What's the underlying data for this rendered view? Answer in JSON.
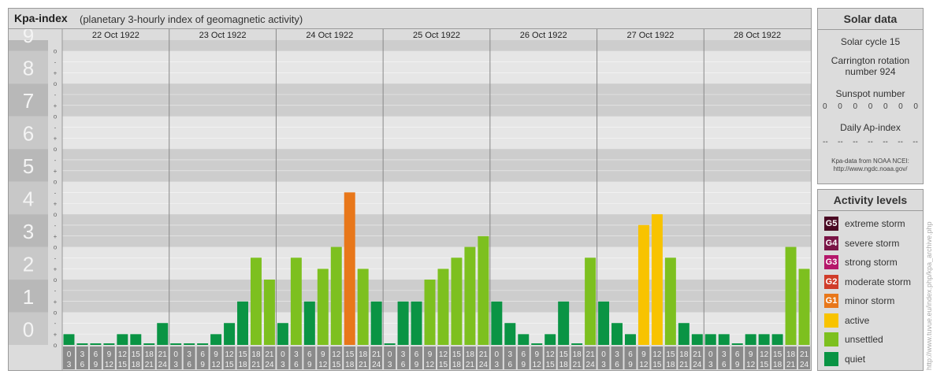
{
  "header": {
    "title": "Kpa-index",
    "subtitle": "(planetary 3-hourly index of geomagnetic activity)"
  },
  "chart_data": {
    "type": "bar",
    "days": [
      "22 Oct 1922",
      "23 Oct 1922",
      "24 Oct 1922",
      "25 Oct 1922",
      "26 Oct 1922",
      "27 Oct 1922",
      "28 Oct 1922"
    ],
    "hour_start_labels": [
      "0",
      "3",
      "6",
      "9",
      "12",
      "15",
      "18",
      "21"
    ],
    "hour_end_labels": [
      "3",
      "6",
      "9",
      "12",
      "15",
      "18",
      "21",
      "24"
    ],
    "y_ticks": [
      "0",
      "1",
      "2",
      "3",
      "4",
      "5",
      "6",
      "7",
      "8",
      "9"
    ],
    "minor_tick_labels": [
      "+",
      "o",
      "-"
    ],
    "ylim": [
      0,
      9.33
    ],
    "values": [
      [
        0.33,
        0,
        0,
        0,
        0.33,
        0.33,
        0,
        0.67
      ],
      [
        0,
        0,
        0,
        0.33,
        0.67,
        1.33,
        2.67,
        2
      ],
      [
        0.67,
        2.67,
        1.33,
        2.33,
        3,
        4.67,
        2.33,
        1.33
      ],
      [
        0,
        1.33,
        1.33,
        2,
        2.33,
        2.67,
        3,
        3.33
      ],
      [
        1.33,
        0.67,
        0.33,
        0,
        0.33,
        1.33,
        0,
        2.67
      ],
      [
        1.33,
        0.67,
        0.33,
        3.67,
        4,
        2.67,
        0.67,
        0.33
      ],
      [
        0.33,
        0.33,
        0,
        0.33,
        0.33,
        0.33,
        3,
        2.33
      ]
    ],
    "colors": {
      "quiet": "#0a9444",
      "unsettled": "#7dc01f",
      "active": "#f8c300",
      "minor_storm": "#e8771a"
    }
  },
  "solar": {
    "title": "Solar data",
    "cycle": "Solar cycle 15",
    "carrington_line1": "Carrington rotation",
    "carrington_line2": "number 924",
    "sunspot_title": "Sunspot number",
    "sunspot_values": [
      "0",
      "0",
      "0",
      "0",
      "0",
      "0",
      "0"
    ],
    "ap_title": "Daily Ap-index",
    "ap_values": [
      "--",
      "--",
      "--",
      "--",
      "--",
      "--",
      "--"
    ],
    "source_line1": "Kpa-data from NOAA NCEI:",
    "source_line2": "http://www.ngdc.noaa.gov/"
  },
  "activity": {
    "title": "Activity levels",
    "levels": [
      {
        "badge": "G5",
        "label": "extreme storm",
        "color": "#4a0a23"
      },
      {
        "badge": "G4",
        "label": "severe storm",
        "color": "#7a1446"
      },
      {
        "badge": "G3",
        "label": "strong storm",
        "color": "#b5176a"
      },
      {
        "badge": "G2",
        "label": "moderate storm",
        "color": "#d03c2a"
      },
      {
        "badge": "G1",
        "label": "minor storm",
        "color": "#e8771a"
      },
      {
        "badge": "",
        "label": "active",
        "color": "#f8c300"
      },
      {
        "badge": "",
        "label": "unsettled",
        "color": "#7dc01f"
      },
      {
        "badge": "",
        "label": "quiet",
        "color": "#0a9444"
      }
    ]
  },
  "watermark": "http://www.tuvue.eu/index.php/kpa_archive.php"
}
